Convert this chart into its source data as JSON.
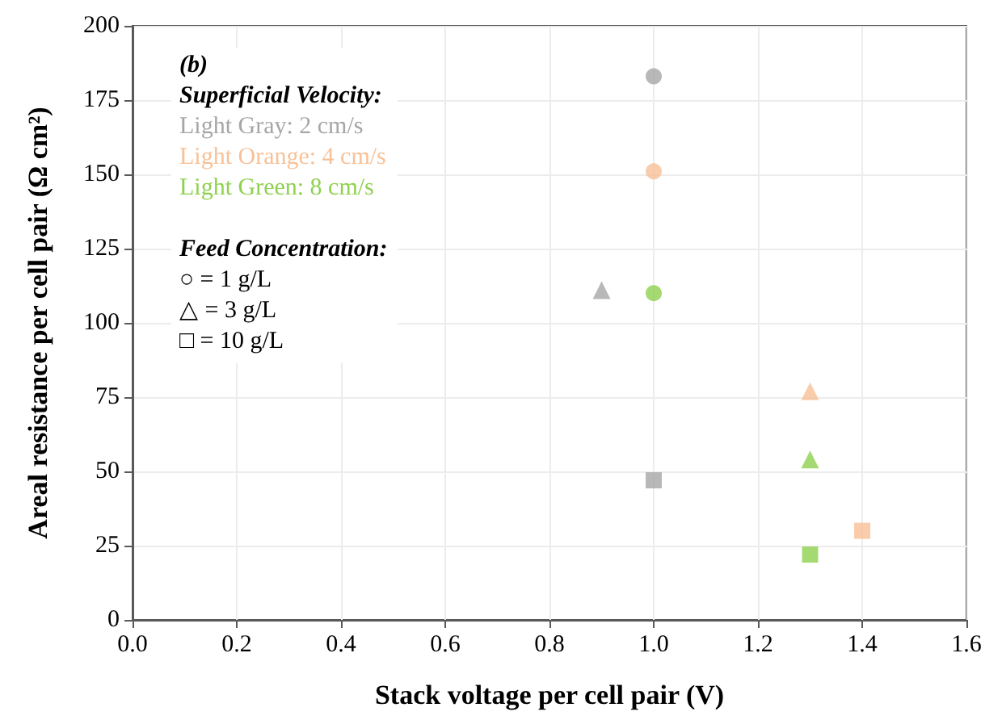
{
  "chart_data": {
    "type": "scatter",
    "xlabel": "Stack voltage per cell pair (V)",
    "ylabel": "Areal resistance per cell pair (Ω cm²)",
    "xlim": [
      0,
      1.6
    ],
    "xticks": [
      {
        "value": 0,
        "label": "0.0"
      },
      {
        "value": 0.2,
        "label": "0.2"
      },
      {
        "value": 0.4,
        "label": "0.4"
      },
      {
        "value": 0.6,
        "label": "0.6"
      },
      {
        "value": 0.8,
        "label": "0.8"
      },
      {
        "value": 1,
        "label": "1.0"
      },
      {
        "value": 1.2,
        "label": "1.2"
      },
      {
        "value": 1.4,
        "label": "1.4"
      },
      {
        "value": 1.6,
        "label": "1.6"
      }
    ],
    "ylim": [
      0,
      200
    ],
    "yticks": [
      0,
      25,
      50,
      75,
      100,
      125,
      150,
      175,
      200
    ],
    "grid": true,
    "series": [
      {
        "color": "#a6a6a6",
        "marker": "circle",
        "x": [
          1.0
        ],
        "values": [
          183
        ]
      },
      {
        "color": "#f8c197",
        "marker": "circle",
        "x": [
          1.0
        ],
        "values": [
          151
        ]
      },
      {
        "color": "#8fd14f",
        "marker": "circle",
        "x": [
          1.0
        ],
        "values": [
          110
        ]
      },
      {
        "color": "#a6a6a6",
        "marker": "triangle",
        "x": [
          0.9
        ],
        "values": [
          111
        ]
      },
      {
        "color": "#f8c197",
        "marker": "triangle",
        "x": [
          1.3
        ],
        "values": [
          77
        ]
      },
      {
        "color": "#8fd14f",
        "marker": "triangle",
        "x": [
          1.3
        ],
        "values": [
          54
        ]
      },
      {
        "color": "#a6a6a6",
        "marker": "square",
        "x": [
          1.0
        ],
        "values": [
          47
        ]
      },
      {
        "color": "#f8c197",
        "marker": "square",
        "x": [
          1.4
        ],
        "values": [
          30
        ]
      },
      {
        "color": "#8fd14f",
        "marker": "square",
        "x": [
          1.3
        ],
        "values": [
          22
        ]
      }
    ],
    "annotations": [
      "(b)",
      "Superficial Velocity:",
      "Light Gray: 2 cm/s",
      "Light Orange: 4 cm/s",
      "Light Green: 8 cm/s",
      "Feed Concentration:",
      "○ = 1 g/L",
      "△ = 3 g/L",
      "□ = 10 g/L"
    ]
  }
}
